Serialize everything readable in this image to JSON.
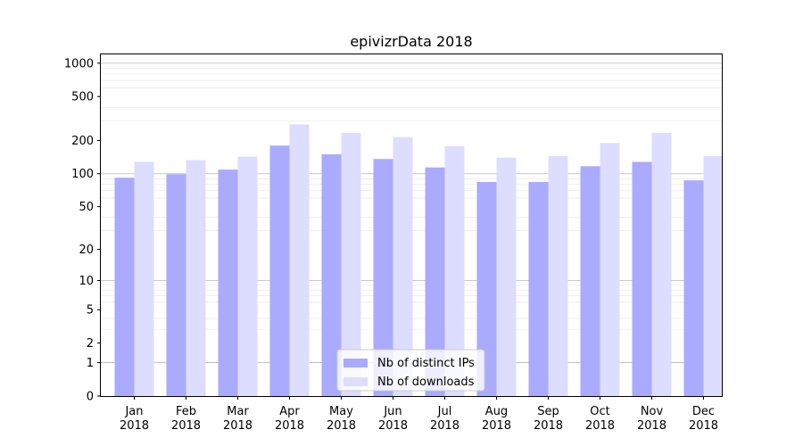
{
  "chart_data": {
    "type": "bar",
    "title": "epivizrData 2018",
    "xlabel": "",
    "ylabel": "",
    "yscale": "log1p",
    "ylim": [
      0,
      1200
    ],
    "yticks": [
      0,
      1,
      2,
      5,
      10,
      20,
      50,
      100,
      200,
      500,
      1000
    ],
    "grid": "horizontal",
    "legend_position": "bottom-center",
    "categories": [
      [
        "Jan",
        "2018"
      ],
      [
        "Feb",
        "2018"
      ],
      [
        "Mar",
        "2018"
      ],
      [
        "Apr",
        "2018"
      ],
      [
        "May",
        "2018"
      ],
      [
        "Jun",
        "2018"
      ],
      [
        "Jul",
        "2018"
      ],
      [
        "Aug",
        "2018"
      ],
      [
        "Sep",
        "2018"
      ],
      [
        "Oct",
        "2018"
      ],
      [
        "Nov",
        "2018"
      ],
      [
        "Dec",
        "2018"
      ]
    ],
    "series": [
      {
        "name": "Nb of distinct IPs",
        "color": "#aaaaff",
        "values": [
          92,
          99,
          109,
          180,
          150,
          136,
          114,
          84,
          84,
          117,
          128,
          87
        ]
      },
      {
        "name": "Nb of downloads",
        "color": "#ddddff",
        "values": [
          128,
          133,
          143,
          280,
          235,
          215,
          178,
          140,
          145,
          190,
          235,
          145
        ]
      }
    ]
  }
}
